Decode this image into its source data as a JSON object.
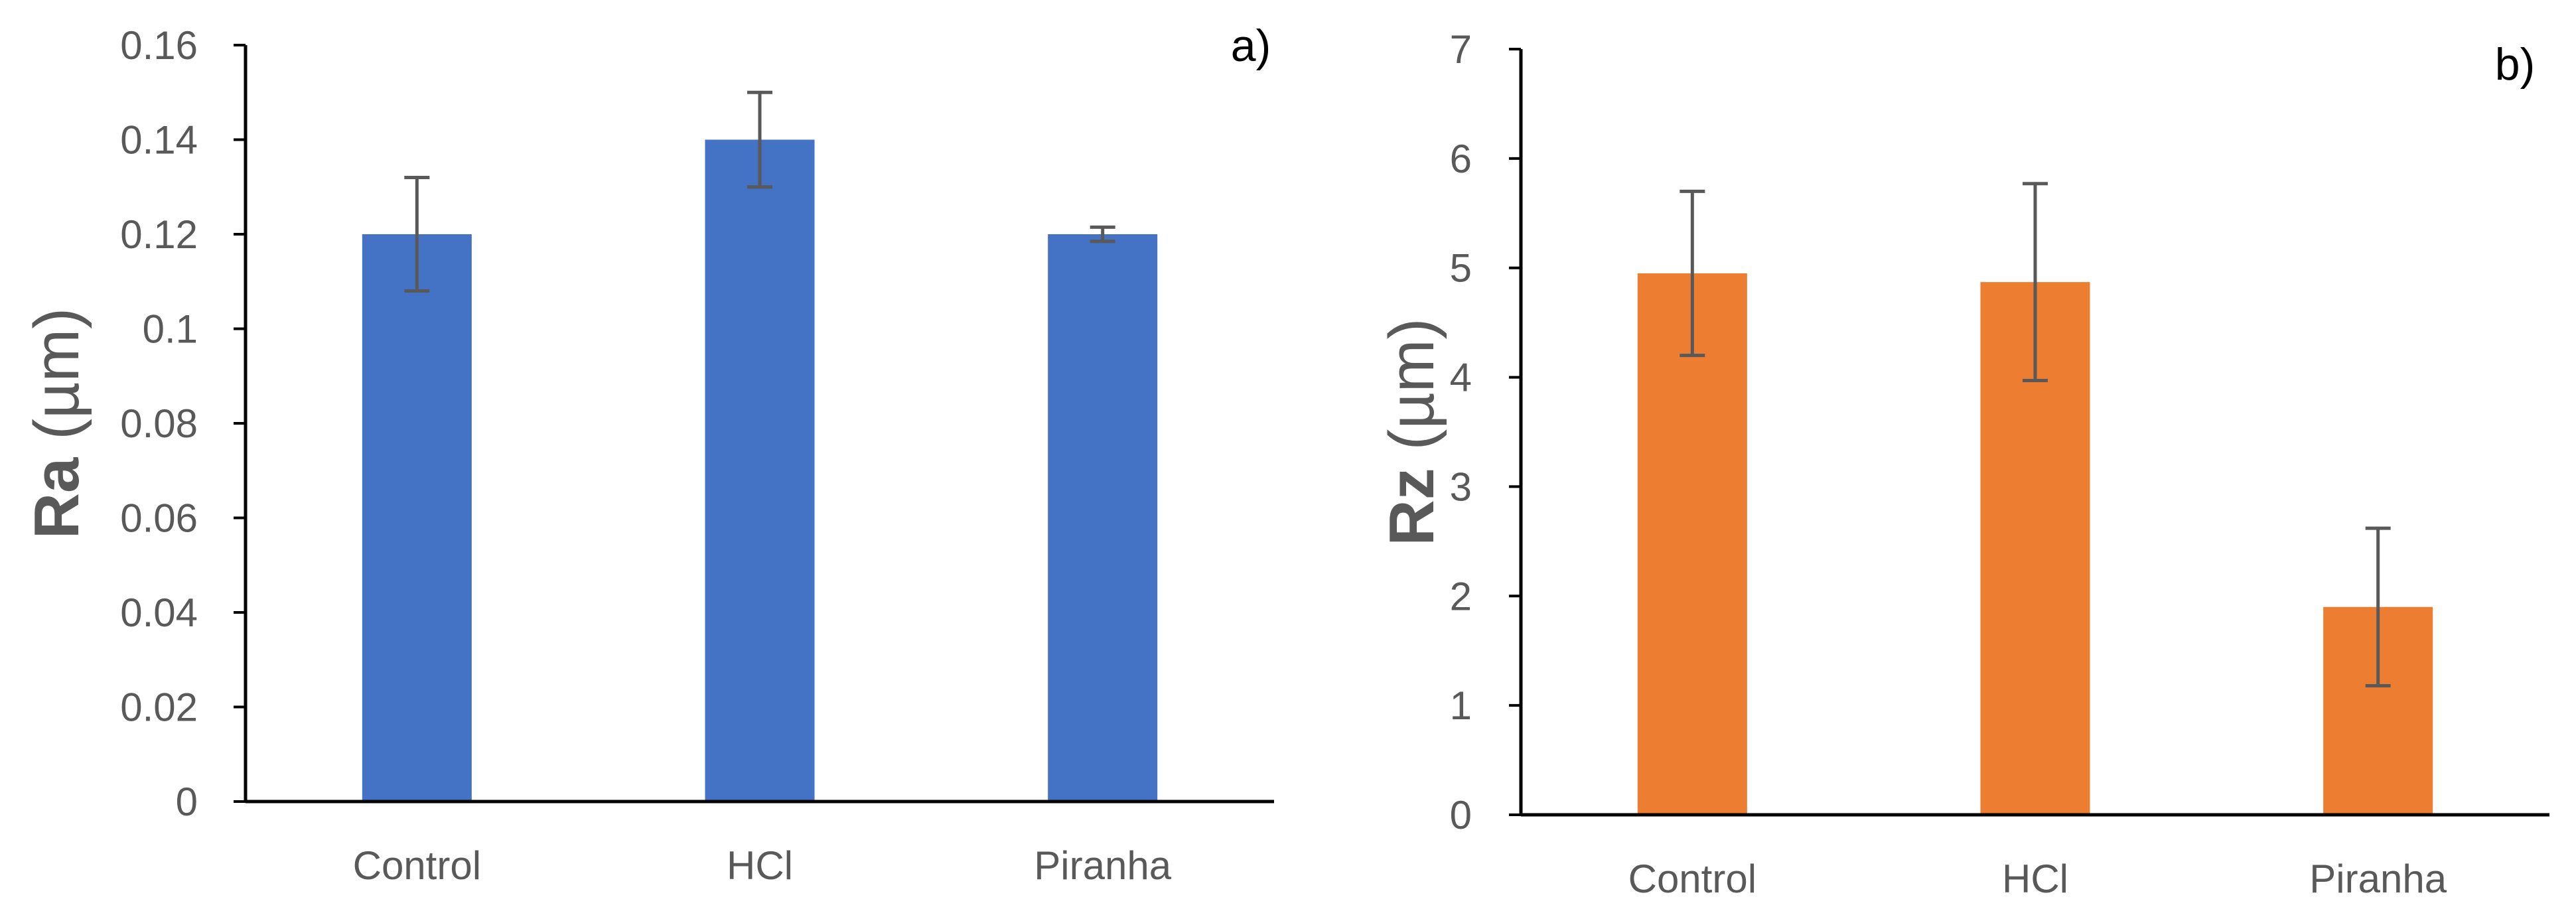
{
  "chart_data": [
    {
      "type": "bar",
      "panel_label": "a)",
      "categories": [
        "Control",
        "HCl",
        "Piranha"
      ],
      "values": [
        0.12,
        0.14,
        0.12
      ],
      "error_plus": [
        0.012,
        0.01,
        0.0015
      ],
      "error_minus": [
        0.012,
        0.01,
        0.0015
      ],
      "ylabel_bold": "Ra",
      "ylabel_rest": " (µm)",
      "xlabel": "",
      "ylim": [
        0,
        0.16
      ],
      "yticks": [
        0,
        0.02,
        0.04,
        0.06,
        0.08,
        0.1,
        0.12,
        0.14,
        0.16
      ],
      "ytick_labels": [
        "0",
        "0.02",
        "0.04",
        "0.06",
        "0.08",
        "0.1",
        "0.12",
        "0.14",
        "0.16"
      ],
      "bar_color": "#4472C4",
      "error_color": "#595959",
      "grid": false
    },
    {
      "type": "bar",
      "panel_label": "b)",
      "categories": [
        "Control",
        "HCl",
        "Piranha"
      ],
      "values": [
        4.95,
        4.87,
        1.9
      ],
      "error_plus": [
        0.75,
        0.9,
        0.72
      ],
      "error_minus": [
        0.75,
        0.9,
        0.72
      ],
      "ylabel_bold": "Rz",
      "ylabel_rest": " (µm)",
      "xlabel": "",
      "ylim": [
        0,
        7
      ],
      "yticks": [
        0,
        1,
        2,
        3,
        4,
        5,
        6,
        7
      ],
      "ytick_labels": [
        "0",
        "1",
        "2",
        "3",
        "4",
        "5",
        "6",
        "7"
      ],
      "bar_color": "#ED7D31",
      "error_color": "#595959",
      "grid": false
    }
  ]
}
